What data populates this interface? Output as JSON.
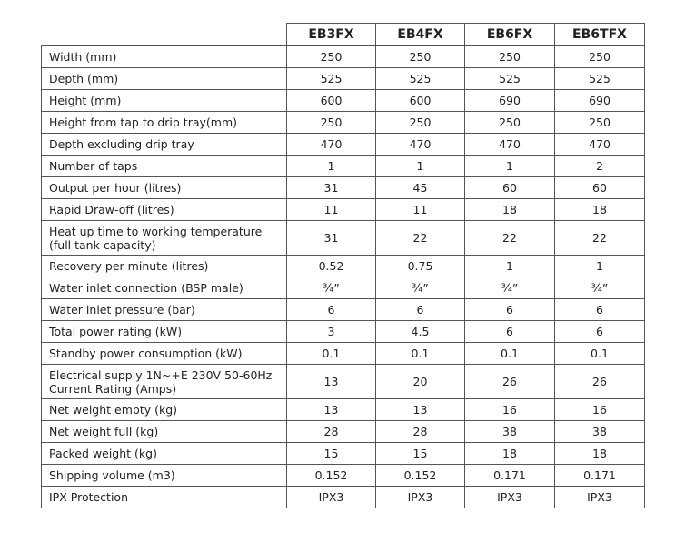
{
  "table": {
    "columns": [
      "EB3FX",
      "EB4FX",
      "EB6FX",
      "EB6TFX"
    ],
    "rows": [
      {
        "label": "Width (mm)",
        "values": [
          "250",
          "250",
          "250",
          "250"
        ]
      },
      {
        "label": "Depth (mm)",
        "values": [
          "525",
          "525",
          "525",
          "525"
        ]
      },
      {
        "label": "Height (mm)",
        "values": [
          "600",
          "600",
          "690",
          "690"
        ]
      },
      {
        "label": "Height from tap to drip tray(mm)",
        "values": [
          "250",
          "250",
          "250",
          "250"
        ]
      },
      {
        "label": "Depth excluding drip tray",
        "values": [
          "470",
          "470",
          "470",
          "470"
        ]
      },
      {
        "label": "Number of taps",
        "values": [
          "1",
          "1",
          "1",
          "2"
        ]
      },
      {
        "label": "Output per hour (litres)",
        "values": [
          "31",
          "45",
          "60",
          "60"
        ]
      },
      {
        "label": "Rapid Draw-off (litres)",
        "values": [
          "11",
          "11",
          "18",
          "18"
        ]
      },
      {
        "label": "Heat up time to working temperature\n(full tank capacity)",
        "values": [
          "31",
          "22",
          "22",
          "22"
        ]
      },
      {
        "label": "Recovery per minute (litres)",
        "values": [
          "0.52",
          "0.75",
          "1",
          "1"
        ]
      },
      {
        "label": "Water inlet connection (BSP male)",
        "values": [
          "¾”",
          "¾”",
          "¾”",
          "¾”"
        ]
      },
      {
        "label": "Water inlet pressure (bar)",
        "values": [
          "6",
          "6",
          "6",
          "6"
        ]
      },
      {
        "label": "Total power rating (kW)",
        "values": [
          "3",
          "4.5",
          "6",
          "6"
        ]
      },
      {
        "label": "Standby power consumption (kW)",
        "values": [
          "0.1",
          "0.1",
          "0.1",
          "0.1"
        ]
      },
      {
        "label": "Electrical supply 1N~+E 230V 50-60Hz\nCurrent Rating (Amps)",
        "values": [
          "13",
          "20",
          "26",
          "26"
        ]
      },
      {
        "label": "Net weight empty (kg)",
        "values": [
          "13",
          "13",
          "16",
          "16"
        ]
      },
      {
        "label": "Net weight full (kg)",
        "values": [
          "28",
          "28",
          "38",
          "38"
        ]
      },
      {
        "label": "Packed weight (kg)",
        "values": [
          "15",
          "15",
          "18",
          "18"
        ]
      },
      {
        "label": "Shipping volume (m3)",
        "values": [
          "0.152",
          "0.152",
          "0.171",
          "0.171"
        ]
      },
      {
        "label": "IPX Protection",
        "values": [
          "IPX3",
          "IPX3",
          "IPX3",
          "IPX3"
        ]
      }
    ]
  }
}
